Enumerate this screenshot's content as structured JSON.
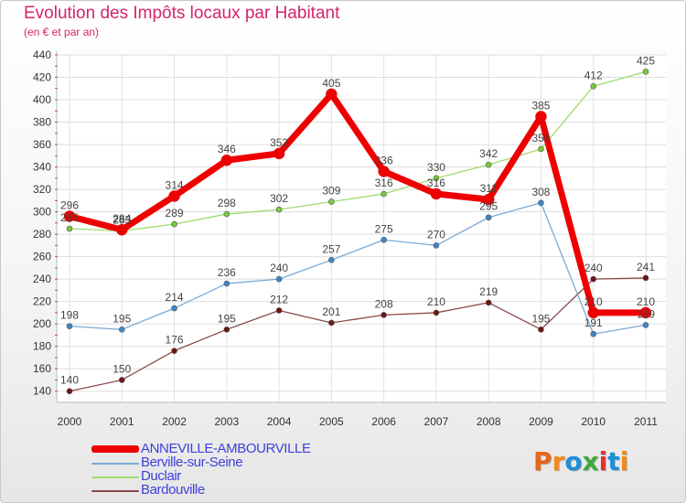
{
  "header": {
    "title": "Evolution des Impôts locaux par Habitant",
    "subtitle": "(en € et par an)"
  },
  "logo": {
    "text": "Proxiti",
    "colors": [
      "#e8641a",
      "#f28a1c",
      "#1f8fd6",
      "#3fa83b",
      "#e2322e",
      "#1f8fd6",
      "#f28a1c"
    ]
  },
  "chart_data": {
    "type": "line",
    "title": "Evolution des Impôts locaux par Habitant",
    "subtitle": "(en € et par an)",
    "xlabel": "",
    "ylabel": "",
    "x": [
      "2000",
      "2001",
      "2002",
      "2003",
      "2004",
      "2005",
      "2006",
      "2007",
      "2008",
      "2009",
      "2010",
      "2011"
    ],
    "yticks": [
      140,
      160,
      180,
      200,
      220,
      240,
      260,
      280,
      300,
      320,
      340,
      360,
      380,
      400,
      420,
      440
    ],
    "ylim": [
      130,
      440
    ],
    "grid": true,
    "legend_position": "bottom-left",
    "series": [
      {
        "name": "Bardouville",
        "color": "#6e1414",
        "line": "#8a4a4a",
        "width": 1.3,
        "values": [
          140,
          150,
          176,
          195,
          212,
          201,
          208,
          210,
          219,
          195,
          240,
          241
        ],
        "labels": [
          "140",
          "150",
          "176",
          "195",
          "212",
          "201",
          "208",
          "210",
          "219",
          "195",
          "240",
          "241"
        ]
      },
      {
        "name": "Berville-sur-Seine",
        "color": "#3e86c8",
        "line": "#7aaad6",
        "width": 1.3,
        "values": [
          198,
          195,
          214,
          236,
          240,
          257,
          275,
          270,
          295,
          308,
          191,
          199
        ],
        "labels": [
          "198",
          "195",
          "214",
          "236",
          "240",
          "257",
          "275",
          "270",
          "295",
          "308",
          "191",
          "199"
        ]
      },
      {
        "name": "Duclair",
        "color": "#77cc3a",
        "line": "#9edc70",
        "width": 1.3,
        "values": [
          285,
          283,
          289,
          298,
          302,
          309,
          316,
          330,
          342,
          356,
          412,
          425
        ],
        "labels": [
          "285",
          "283",
          "289",
          "298",
          "302",
          "309",
          "316",
          "330",
          "342",
          "356",
          "412",
          "425"
        ]
      },
      {
        "name": "ANNEVILLE-AMBOURVILLE",
        "color": "#ee0000",
        "line": "#ee0000",
        "width": 7,
        "values": [
          296,
          284,
          314,
          346,
          352,
          405,
          336,
          316,
          311,
          385,
          210,
          210
        ],
        "labels": [
          "296",
          "284",
          "314",
          "346",
          "352",
          "405",
          "336",
          "316",
          "311",
          "385",
          "210",
          "210"
        ]
      }
    ]
  },
  "legend": {
    "items": [
      {
        "label": "ANNEVILLE-AMBOURVILLE",
        "color": "#ee0000",
        "thick": true
      },
      {
        "label": "Berville-sur-Seine",
        "color": "#7aaad6",
        "thick": false
      },
      {
        "label": "Duclair",
        "color": "#9edc70",
        "thick": false
      },
      {
        "label": "Bardouville",
        "color": "#8a4a4a",
        "thick": false
      }
    ]
  }
}
